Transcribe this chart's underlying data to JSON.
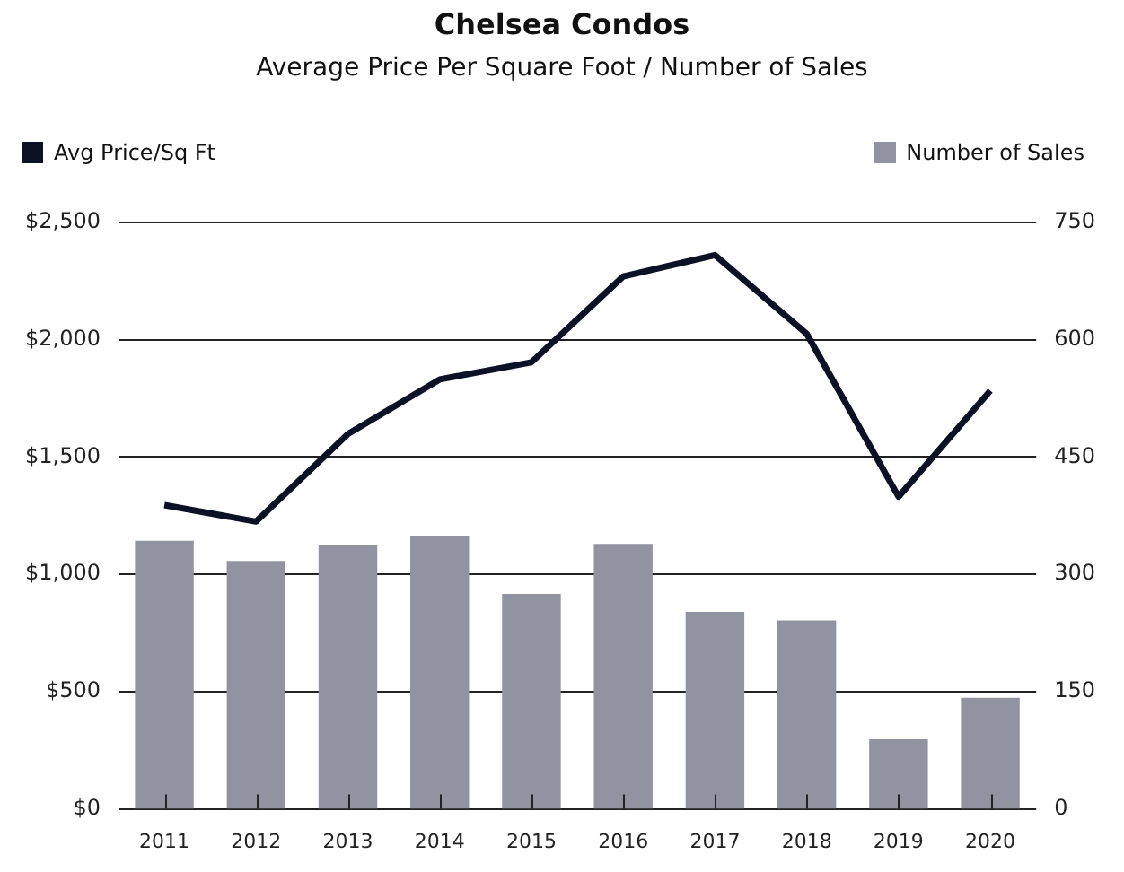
{
  "chart_data": {
    "type": "bar",
    "title": "Chelsea Condos",
    "subtitle": "Average Price Per Square Foot / Number of Sales",
    "categories": [
      "2011",
      "2012",
      "2013",
      "2014",
      "2015",
      "2016",
      "2017",
      "2018",
      "2019",
      "2020"
    ],
    "series": [
      {
        "name": "Avg Price/Sq Ft",
        "type": "line",
        "color": "#0d1126",
        "values": [
          1295,
          1225,
          1598,
          1831,
          1904,
          2270,
          2361,
          2025,
          1331,
          1783
        ]
      },
      {
        "name": "Number of Sales",
        "axis": "y2",
        "color": "#9194a0",
        "values": [
          343,
          317,
          337,
          349,
          275,
          339,
          252,
          241,
          89,
          142
        ]
      }
    ],
    "ylim": [
      0,
      2500
    ],
    "yticks": [
      {
        "value": 0,
        "label": "$0"
      },
      {
        "value": 500,
        "label": "$500"
      },
      {
        "value": 1000,
        "label": "$1,000"
      },
      {
        "value": 1500,
        "label": "$1,500"
      },
      {
        "value": 2000,
        "label": "$2,000"
      },
      {
        "value": 2500,
        "label": "$2,500"
      }
    ],
    "y2lim": [
      0,
      750
    ],
    "y2ticks": [
      0,
      150,
      300,
      450,
      600,
      750
    ],
    "grid": "y",
    "legend": "top",
    "marker": "none",
    "line_style": "solid"
  }
}
